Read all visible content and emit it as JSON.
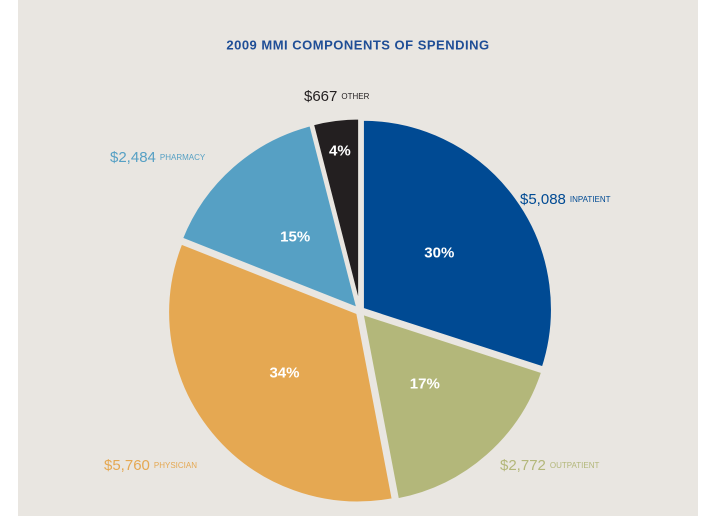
{
  "chart_data": {
    "type": "pie",
    "title": "2009 MMI COMPONENTS OF SPENDING",
    "categories": [
      "INPATIENT",
      "OUTPATIENT",
      "PHYSICIAN",
      "PHARMACY",
      "OTHER"
    ],
    "values": [
      30,
      17,
      34,
      15,
      4
    ],
    "value_labels": [
      "30%",
      "17%",
      "34%",
      "15%",
      "4%"
    ],
    "amount_labels": [
      "$5,088",
      "$2,772",
      "$5,760",
      "$2,484",
      "$667"
    ],
    "colors": [
      "#004a93",
      "#b3b77a",
      "#e5a852",
      "#56a0c4",
      "#231f20"
    ]
  }
}
